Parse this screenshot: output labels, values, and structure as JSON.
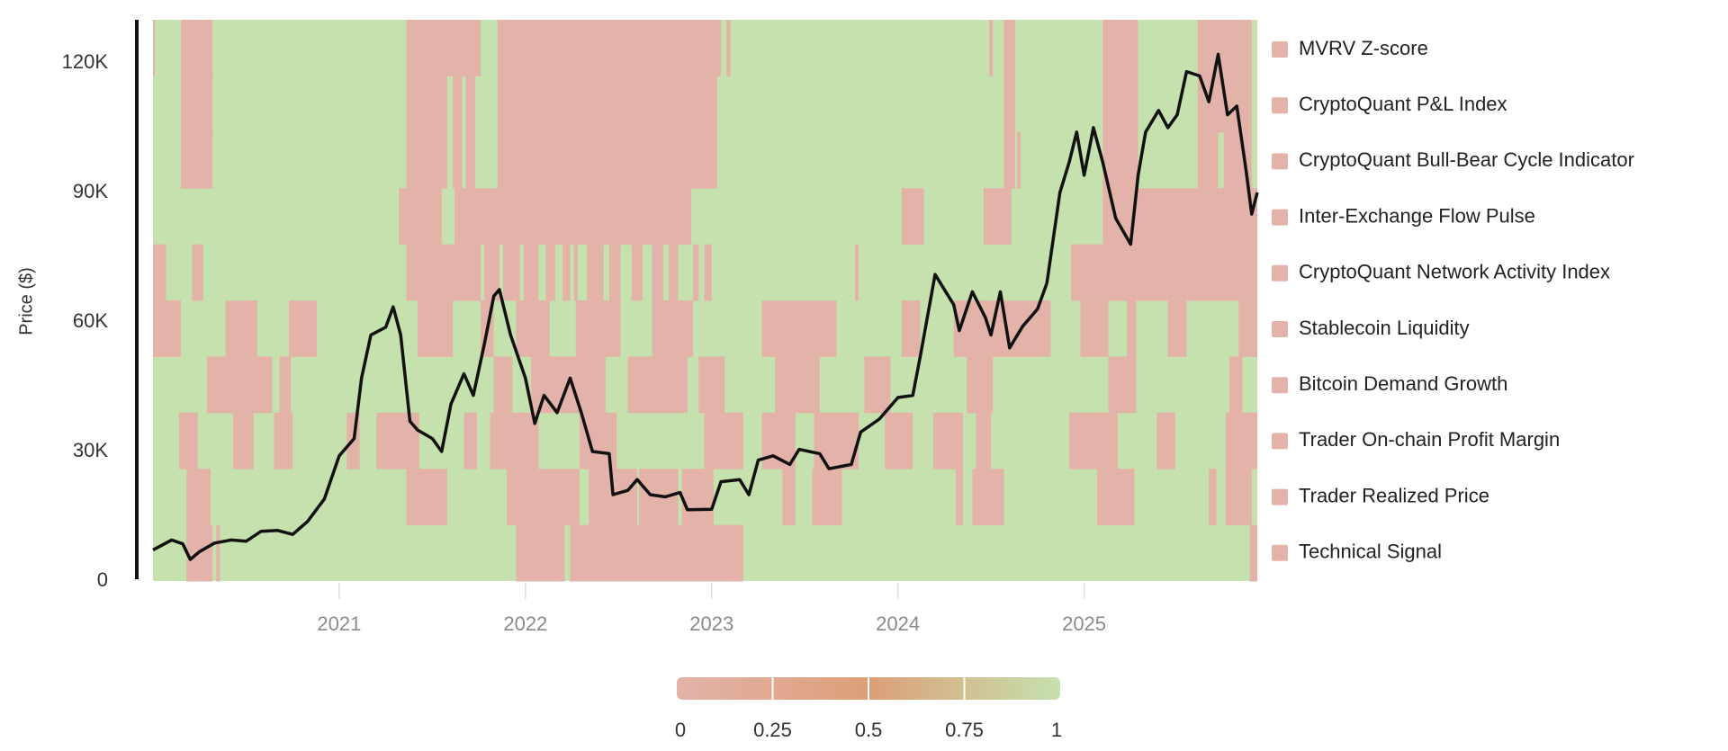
{
  "chart_data": {
    "type": "heatmap",
    "title": "",
    "xlabel": "",
    "ylabel": "Price ($)",
    "xlim": [
      2020.0,
      2025.93
    ],
    "ylim": [
      0,
      130000
    ],
    "x_ticks": [
      2021,
      2022,
      2023,
      2024,
      2025
    ],
    "x_tick_labels": [
      "2021",
      "2022",
      "2023",
      "2024",
      "2025"
    ],
    "y_ticks": [
      0,
      30000,
      60000,
      90000,
      120000
    ],
    "y_tick_labels": [
      "0",
      "30K",
      "60K",
      "90K",
      "120K"
    ],
    "colors": {
      "low": "#e3b3aa",
      "mid": "#dca07a",
      "high": "#c5e1ae",
      "price_line": "#111111",
      "axis": "#111111"
    },
    "colorbar": {
      "min": 0,
      "max": 1,
      "ticks": [
        "0",
        "0.25",
        "0.5",
        "0.75",
        "1"
      ]
    },
    "legend_position": "right",
    "rows": [
      {
        "name": "MVRV Z-score",
        "red_segments": [
          [
            2020.0,
            2020.01
          ],
          [
            2020.15,
            2020.32
          ],
          [
            2021.36,
            2021.76
          ],
          [
            2021.85,
            2023.05
          ],
          [
            2023.08,
            2023.1
          ],
          [
            2024.49,
            2024.51
          ],
          [
            2024.57,
            2024.63
          ],
          [
            2025.1,
            2025.29
          ],
          [
            2025.61,
            2025.9
          ]
        ]
      },
      {
        "name": "CryptoQuant P&L Index",
        "red_segments": [
          [
            2020.15,
            2020.32
          ],
          [
            2021.36,
            2021.58
          ],
          [
            2021.61,
            2021.66
          ],
          [
            2021.68,
            2021.73
          ],
          [
            2021.85,
            2023.03
          ],
          [
            2024.57,
            2024.63
          ],
          [
            2025.1,
            2025.29
          ],
          [
            2025.61,
            2025.9
          ]
        ]
      },
      {
        "name": "CryptoQuant Bull-Bear Cycle Indicator",
        "red_segments": [
          [
            2020.15,
            2020.32
          ],
          [
            2021.36,
            2021.58
          ],
          [
            2021.61,
            2021.66
          ],
          [
            2021.68,
            2021.73
          ],
          [
            2021.85,
            2023.03
          ],
          [
            2024.57,
            2024.63
          ],
          [
            2024.64,
            2024.66
          ],
          [
            2025.1,
            2025.29
          ],
          [
            2025.61,
            2025.72
          ],
          [
            2025.75,
            2025.9
          ]
        ]
      },
      {
        "name": "Inter-Exchange Flow Pulse",
        "red_segments": [
          [
            2021.32,
            2021.55
          ],
          [
            2021.62,
            2022.89
          ],
          [
            2024.02,
            2024.14
          ],
          [
            2024.46,
            2024.61
          ],
          [
            2025.1,
            2025.93
          ]
        ]
      },
      {
        "name": "CryptoQuant Network Activity Index",
        "red_segments": [
          [
            2020.0,
            2020.07
          ],
          [
            2020.21,
            2020.27
          ],
          [
            2021.36,
            2021.76
          ],
          [
            2021.78,
            2021.86
          ],
          [
            2021.88,
            2021.97
          ],
          [
            2021.99,
            2022.07
          ],
          [
            2022.11,
            2022.16
          ],
          [
            2022.2,
            2022.24
          ],
          [
            2022.26,
            2022.28
          ],
          [
            2022.33,
            2022.42
          ],
          [
            2022.45,
            2022.51
          ],
          [
            2022.57,
            2022.63
          ],
          [
            2022.68,
            2022.74
          ],
          [
            2022.77,
            2022.82
          ],
          [
            2022.9,
            2022.93
          ],
          [
            2022.96,
            2023.0
          ],
          [
            2023.77,
            2023.79
          ],
          [
            2024.93,
            2025.93
          ]
        ]
      },
      {
        "name": "Stablecoin Liquidity",
        "red_segments": [
          [
            2020.0,
            2020.15
          ],
          [
            2020.39,
            2020.56
          ],
          [
            2020.73,
            2020.88
          ],
          [
            2021.42,
            2021.61
          ],
          [
            2021.76,
            2021.83
          ],
          [
            2021.95,
            2022.13
          ],
          [
            2022.27,
            2022.51
          ],
          [
            2022.68,
            2022.9
          ],
          [
            2023.27,
            2023.67
          ],
          [
            2024.02,
            2024.12
          ],
          [
            2024.3,
            2024.82
          ],
          [
            2024.98,
            2025.13
          ],
          [
            2025.23,
            2025.28
          ],
          [
            2025.45,
            2025.55
          ],
          [
            2025.83,
            2025.93
          ]
        ]
      },
      {
        "name": "Bitcoin Demand Growth",
        "red_segments": [
          [
            2020.29,
            2020.64
          ],
          [
            2020.68,
            2020.74
          ],
          [
            2021.83,
            2021.93
          ],
          [
            2022.03,
            2022.43
          ],
          [
            2022.55,
            2022.87
          ],
          [
            2022.93,
            2023.07
          ],
          [
            2023.34,
            2023.58
          ],
          [
            2023.82,
            2023.96
          ],
          [
            2024.37,
            2024.51
          ],
          [
            2025.13,
            2025.28
          ],
          [
            2025.78,
            2025.85
          ]
        ]
      },
      {
        "name": "Trader On-chain Profit Margin",
        "red_segments": [
          [
            2020.14,
            2020.24
          ],
          [
            2020.43,
            2020.54
          ],
          [
            2020.65,
            2020.75
          ],
          [
            2021.04,
            2021.11
          ],
          [
            2021.2,
            2021.43
          ],
          [
            2021.67,
            2021.74
          ],
          [
            2021.81,
            2022.07
          ],
          [
            2022.29,
            2022.49
          ],
          [
            2022.96,
            2023.17
          ],
          [
            2023.27,
            2023.45
          ],
          [
            2023.55,
            2023.79
          ],
          [
            2023.93,
            2024.08
          ],
          [
            2024.19,
            2024.35
          ],
          [
            2024.42,
            2024.5
          ],
          [
            2024.92,
            2025.18
          ],
          [
            2025.39,
            2025.49
          ],
          [
            2025.76,
            2025.93
          ]
        ]
      },
      {
        "name": "Trader Realized Price",
        "red_segments": [
          [
            2020.18,
            2020.31
          ],
          [
            2021.36,
            2021.58
          ],
          [
            2021.9,
            2022.29
          ],
          [
            2022.34,
            2022.6
          ],
          [
            2022.61,
            2022.82
          ],
          [
            2022.84,
            2023.01
          ],
          [
            2023.38,
            2023.45
          ],
          [
            2023.54,
            2023.7
          ],
          [
            2024.31,
            2024.35
          ],
          [
            2024.4,
            2024.57
          ],
          [
            2025.07,
            2025.27
          ],
          [
            2025.67,
            2025.71
          ],
          [
            2025.76,
            2025.9
          ]
        ]
      },
      {
        "name": "Technical Signal",
        "red_segments": [
          [
            2020.18,
            2020.32
          ],
          [
            2020.34,
            2020.36
          ],
          [
            2021.95,
            2022.21
          ],
          [
            2022.24,
            2023.17
          ],
          [
            2025.89,
            2025.93
          ]
        ]
      }
    ],
    "price_series": {
      "name": "BTC Price",
      "x": [
        2020.0,
        2020.1,
        2020.16,
        2020.2,
        2020.25,
        2020.33,
        2020.42,
        2020.5,
        2020.58,
        2020.67,
        2020.75,
        2020.83,
        2020.92,
        2021.0,
        2021.08,
        2021.12,
        2021.17,
        2021.25,
        2021.29,
        2021.33,
        2021.38,
        2021.42,
        2021.5,
        2021.55,
        2021.6,
        2021.67,
        2021.72,
        2021.78,
        2021.83,
        2021.86,
        2021.92,
        2022.0,
        2022.05,
        2022.1,
        2022.17,
        2022.24,
        2022.3,
        2022.36,
        2022.45,
        2022.47,
        2022.55,
        2022.6,
        2022.67,
        2022.75,
        2022.83,
        2022.87,
        2023.0,
        2023.05,
        2023.15,
        2023.2,
        2023.25,
        2023.33,
        2023.42,
        2023.47,
        2023.58,
        2023.63,
        2023.75,
        2023.8,
        2023.9,
        2024.0,
        2024.08,
        2024.12,
        2024.2,
        2024.3,
        2024.33,
        2024.4,
        2024.47,
        2024.5,
        2024.55,
        2024.6,
        2024.67,
        2024.75,
        2024.8,
        2024.87,
        2024.92,
        2024.96,
        2025.0,
        2025.05,
        2025.1,
        2025.17,
        2025.25,
        2025.29,
        2025.33,
        2025.4,
        2025.45,
        2025.5,
        2025.55,
        2025.62,
        2025.67,
        2025.72,
        2025.77,
        2025.82,
        2025.87,
        2025.9,
        2025.93
      ],
      "y": [
        7200,
        9500,
        8600,
        5000,
        6800,
        8800,
        9500,
        9200,
        11500,
        11700,
        10800,
        13800,
        19000,
        29000,
        33000,
        47000,
        57000,
        58800,
        63500,
        57000,
        37000,
        35000,
        33000,
        30000,
        41000,
        48000,
        43000,
        55000,
        66000,
        67500,
        57000,
        47000,
        36500,
        43000,
        39000,
        47000,
        39000,
        30000,
        29500,
        20000,
        21000,
        23500,
        20000,
        19500,
        20500,
        16500,
        16600,
        23000,
        23500,
        20000,
        28000,
        29000,
        27000,
        30500,
        29500,
        26000,
        27000,
        34500,
        37500,
        42500,
        43000,
        52000,
        71000,
        64000,
        58000,
        67000,
        61000,
        57000,
        67000,
        54000,
        59000,
        63000,
        69000,
        90000,
        97000,
        104000,
        94000,
        105000,
        97000,
        84000,
        78000,
        94000,
        104000,
        109000,
        105000,
        108000,
        118000,
        117000,
        111000,
        122000,
        108000,
        110000,
        95000,
        85000,
        90000
      ]
    }
  }
}
